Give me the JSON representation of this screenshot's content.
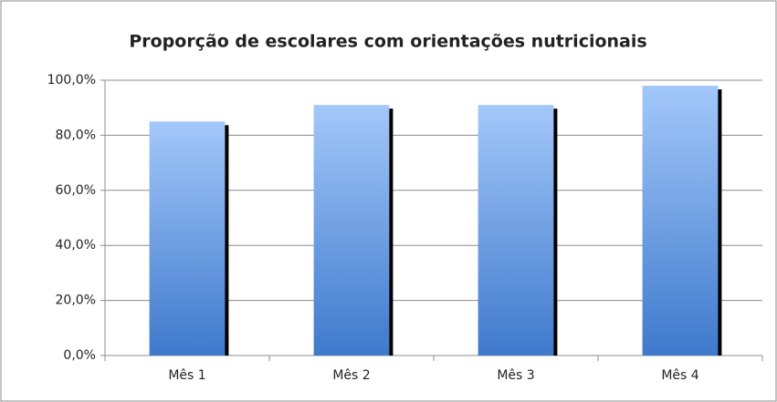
{
  "chart_data": {
    "type": "bar",
    "title": "Proporção de escolares com orientações nutricionais",
    "categories": [
      "Mês 1",
      "Mês 2",
      "Mês 3",
      "Mês 4"
    ],
    "values": [
      85,
      91,
      91,
      98
    ],
    "color": "#6f9fe6",
    "ylim": [
      0,
      100
    ],
    "yticks": [
      {
        "value": 0,
        "label": "0,0%"
      },
      {
        "value": 20,
        "label": "20,0%"
      },
      {
        "value": 40,
        "label": "40,0%"
      },
      {
        "value": 60,
        "label": "60,0%"
      },
      {
        "value": 80,
        "label": "80,0%"
      },
      {
        "value": 100,
        "label": "100,0%"
      }
    ],
    "grid": true
  }
}
